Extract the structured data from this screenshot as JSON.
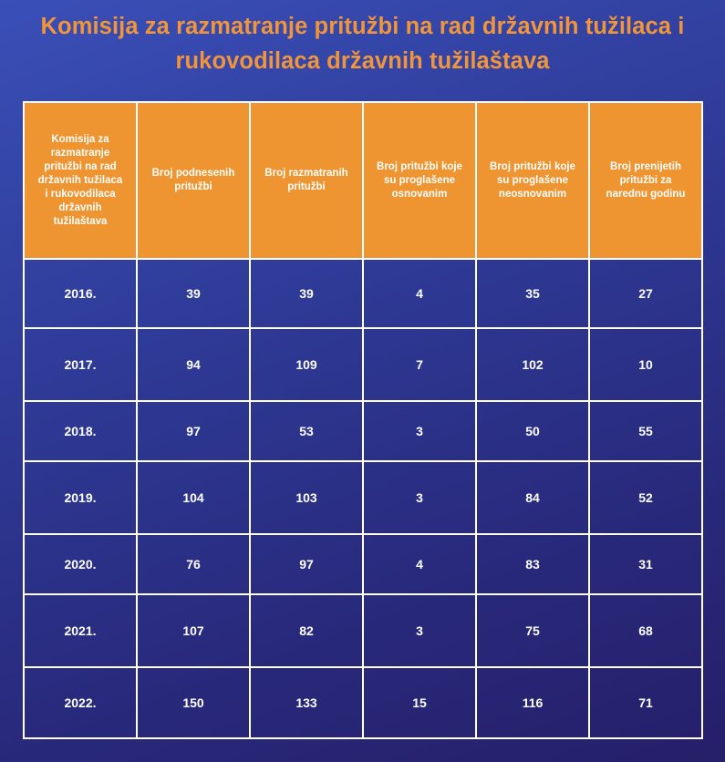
{
  "title_line1": "Komisija za razmatranje pritužbi na rad državnih tužilaca i",
  "title_line2": "rukovodilaca državnih tužilaštava",
  "headers": [
    "Komisija za razmatranje pritužbi na rad državnih tužilaca i rukovodilaca državnih tužilaštava",
    "Broj podnesenih pritužbi",
    "Broj razmatranih pritužbi",
    "Broj pritužbi koje su proglašene osnovanim",
    "Broj pritužbi koje su proglašene neosnovanim",
    "Broj prenijetih pritužbi za narednu godinu"
  ],
  "rows": [
    [
      "2016.",
      "39",
      "39",
      "4",
      "35",
      "27"
    ],
    [
      "2017.",
      "94",
      "109",
      "7",
      "102",
      "10"
    ],
    [
      "2018.",
      "97",
      "53",
      "3",
      "50",
      "55"
    ],
    [
      "2019.",
      "104",
      "103",
      "3",
      "84",
      "52"
    ],
    [
      "2020.",
      "76",
      "97",
      "4",
      "83",
      "31"
    ],
    [
      "2021.",
      "107",
      "82",
      "3",
      "75",
      "68"
    ],
    [
      "2022.",
      "150",
      "133",
      "15",
      "116",
      "71"
    ]
  ]
}
